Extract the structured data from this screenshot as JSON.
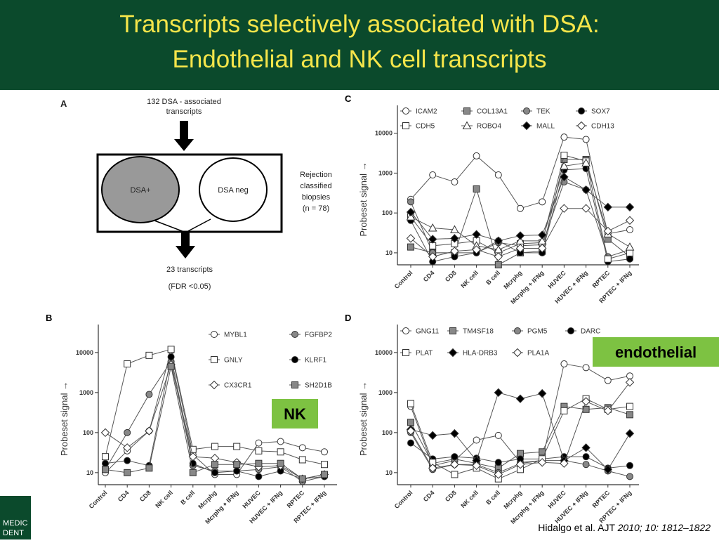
{
  "title": [
    "Transcripts selectively associated with DSA:",
    "Endothelial and NK cell transcripts"
  ],
  "diagram": {
    "panel": "A",
    "top": [
      "132 DSA - associated",
      "transcripts"
    ],
    "left_circle": "DSA+",
    "right_circle": "DSA neg",
    "side": [
      "Rejection",
      "classified",
      "biopsies",
      "(n = 78)"
    ],
    "bottom": [
      "23 transcripts",
      "(FDR <0.05)"
    ]
  },
  "logo": [
    "MEDIC",
    "DENT"
  ],
  "citation": {
    "authors": "Hidalgo et al.  AJT ",
    "reference": "2010; 10: 1812–1822"
  },
  "chart_data": [
    {
      "type": "line",
      "panel": "C",
      "y_label": "Probeset signal →",
      "log_scale": true,
      "ylim": [
        5,
        50000
      ],
      "yticks": [
        10,
        100,
        1000,
        10000
      ],
      "categories": [
        "Control",
        "CD4",
        "CD8",
        "NK cell",
        "B cell",
        "Mcrphg",
        "Mcrphg + IFNg",
        "HUVEC",
        "HUVEC + IFNg",
        "RPTEC",
        "RPTEC + IFNg"
      ],
      "series": [
        {
          "name": "ICAM2",
          "marker": "circle",
          "color": "#ffffff",
          "values": [
            220,
            900,
            600,
            2700,
            900,
            130,
            190,
            8000,
            7000,
            30,
            38
          ]
        },
        {
          "name": "COL13A1",
          "marker": "square",
          "color": "#888888",
          "values": [
            14,
            10,
            10,
            400,
            5,
            10,
            11,
            2200,
            2200,
            22,
            8
          ]
        },
        {
          "name": "TEK",
          "marker": "circle",
          "color": "#888888",
          "values": [
            190,
            10,
            10,
            10,
            18,
            15,
            16,
            600,
            380,
            8,
            12
          ]
        },
        {
          "name": "SOX7",
          "marker": "circle",
          "color": "#000000",
          "values": [
            65,
            6,
            8,
            10,
            20,
            10,
            10,
            1200,
            1300,
            6,
            7
          ]
        },
        {
          "name": "CDH5",
          "marker": "square",
          "color": "#ffffff",
          "values": [
            80,
            15,
            17,
            20,
            10,
            17,
            18,
            2800,
            2000,
            7,
            10
          ]
        },
        {
          "name": "ROBO4",
          "marker": "triangle",
          "color": "#ffffff",
          "values": [
            80,
            42,
            38,
            15,
            12,
            20,
            20,
            1500,
            1800,
            30,
            14
          ]
        },
        {
          "name": "MALL",
          "marker": "diamond",
          "color": "#000000",
          "values": [
            105,
            22,
            23,
            29,
            20,
            27,
            28,
            800,
            380,
            140,
            140
          ]
        },
        {
          "name": "CDH13",
          "marker": "diamond",
          "color": "#ffffff",
          "values": [
            23,
            8,
            11,
            12,
            8,
            13,
            13,
            130,
            130,
            35,
            65
          ]
        }
      ]
    },
    {
      "type": "line",
      "panel": "B",
      "y_label": "Probeset signal →",
      "log_scale": true,
      "ylim": [
        5,
        50000
      ],
      "yticks": [
        10,
        100,
        1000,
        10000
      ],
      "annotation": "NK",
      "categories": [
        "Control",
        "CD4",
        "CD8",
        "NK cell",
        "B cell",
        "Mcrphg",
        "Mcrphg + IFNg",
        "HUVEC",
        "HUVEC + IFNg",
        "RPTEC",
        "RPTEC + IFNg"
      ],
      "series": [
        {
          "name": "MYBL1",
          "marker": "circle",
          "color": "#ffffff",
          "values": [
            10,
            35,
            110,
            11000,
            28,
            9,
            9,
            55,
            60,
            42,
            33
          ]
        },
        {
          "name": "FGFBP2",
          "marker": "circle",
          "color": "#888888",
          "values": [
            12,
            100,
            900,
            6000,
            15,
            11,
            11,
            12,
            14,
            6,
            8
          ]
        },
        {
          "name": "GNLY",
          "marker": "square",
          "color": "#ffffff",
          "values": [
            25,
            5200,
            8500,
            12000,
            38,
            45,
            45,
            35,
            33,
            21,
            16
          ]
        },
        {
          "name": "KLRF1",
          "marker": "circle",
          "color": "#000000",
          "values": [
            17,
            20,
            15,
            7800,
            17,
            10,
            11,
            8,
            11,
            7,
            8
          ]
        },
        {
          "name": "CX3CR1",
          "marker": "diamond",
          "color": "#ffffff",
          "values": [
            100,
            42,
            110,
            5000,
            25,
            23,
            18,
            14,
            15,
            7,
            9
          ]
        },
        {
          "name": "SH2D1B",
          "marker": "square",
          "color": "#888888",
          "values": [
            12,
            10,
            13,
            4500,
            10,
            16,
            16,
            17,
            17,
            7,
            9
          ]
        }
      ]
    },
    {
      "type": "line",
      "panel": "D",
      "y_label": "Probeset signal →",
      "log_scale": true,
      "ylim": [
        5,
        50000
      ],
      "yticks": [
        10,
        100,
        1000,
        10000
      ],
      "annotation": "endothelial",
      "categories": [
        "Control",
        "CD4",
        "CD8",
        "NK cell",
        "B cell",
        "Mcrphg",
        "Mcrphg + IFNg",
        "HUVEC",
        "HUVEC + IFNg",
        "RPTEC",
        "RPTEC + IFNg"
      ],
      "series": [
        {
          "name": "GNG11",
          "marker": "circle",
          "color": "#ffffff",
          "values": [
            450,
            15,
            20,
            65,
            85,
            18,
            20,
            5200,
            4200,
            2000,
            2600
          ]
        },
        {
          "name": "TM4SF18",
          "marker": "square",
          "color": "#888888",
          "values": [
            180,
            17,
            22,
            17,
            13,
            30,
            33,
            450,
            380,
            420,
            280
          ]
        },
        {
          "name": "PGM5",
          "marker": "circle",
          "color": "#888888",
          "values": [
            100,
            12,
            16,
            16,
            10,
            17,
            20,
            20,
            16,
            11,
            8
          ]
        },
        {
          "name": "DARC",
          "marker": "circle",
          "color": "#000000",
          "values": [
            55,
            22,
            25,
            23,
            18,
            22,
            22,
            25,
            25,
            13,
            15
          ]
        },
        {
          "name": "PLAT",
          "marker": "square",
          "color": "#ffffff",
          "values": [
            530,
            18,
            9,
            13,
            7,
            12,
            22,
            350,
            700,
            380,
            450
          ]
        },
        {
          "name": "HLA-DRB3",
          "marker": "diamond",
          "color": "#000000",
          "values": [
            120,
            85,
            95,
            20,
            1000,
            700,
            950,
            20,
            42,
            12,
            95
          ]
        },
        {
          "name": "PLA1A",
          "marker": "diamond",
          "color": "#ffffff",
          "values": [
            110,
            13,
            16,
            15,
            9,
            16,
            18,
            17,
            600,
            350,
            1800
          ]
        }
      ]
    }
  ]
}
